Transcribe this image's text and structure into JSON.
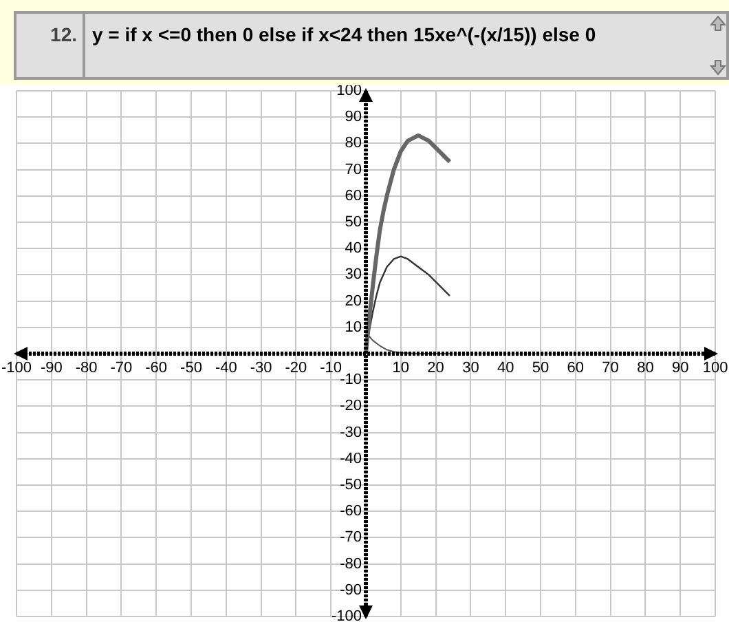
{
  "chart_data": {
    "type": "line",
    "title": "y = if x <=0 then 0 else if x<24 then 15xe^(-(x/15)) else 0",
    "annotations": [
      "12."
    ],
    "xlim": [
      -100,
      100
    ],
    "ylim": [
      -100,
      100
    ],
    "xticks": [
      -100,
      -90,
      -80,
      -70,
      -60,
      -50,
      -40,
      -30,
      -20,
      -10,
      {
        "value": 0,
        "label": null
      },
      10,
      20,
      30,
      40,
      50,
      60,
      70,
      80,
      90,
      100
    ],
    "yticks": [
      -100,
      -90,
      -80,
      -70,
      -60,
      -50,
      -40,
      -30,
      -20,
      -10,
      {
        "value": 0,
        "label": null
      },
      10,
      20,
      30,
      40,
      50,
      60,
      70,
      80,
      90,
      100
    ],
    "grid": true,
    "legend": false,
    "marker": "none",
    "line_style": "solid",
    "series": [
      {
        "color": "#666666",
        "x": [
          0,
          1,
          2,
          3,
          4,
          5,
          6,
          8,
          10,
          12,
          15,
          18,
          21,
          24
        ],
        "values": [
          0,
          14,
          26,
          37,
          47,
          54,
          60,
          70,
          77,
          81,
          83,
          81,
          77,
          73
        ]
      },
      {
        "color": "#333333",
        "x": [
          0,
          1,
          2,
          3,
          4,
          6,
          8,
          10,
          12,
          15,
          18,
          21,
          24
        ],
        "values": [
          0,
          9,
          16,
          22,
          27,
          33,
          36,
          37,
          36,
          33,
          30,
          26,
          22
        ]
      },
      {
        "color": "#555555",
        "x": [
          0,
          2,
          4,
          6,
          8,
          10,
          14,
          24
        ],
        "values": [
          8,
          5,
          3,
          1.5,
          0.7,
          0.3,
          0,
          0
        ]
      }
    ]
  }
}
